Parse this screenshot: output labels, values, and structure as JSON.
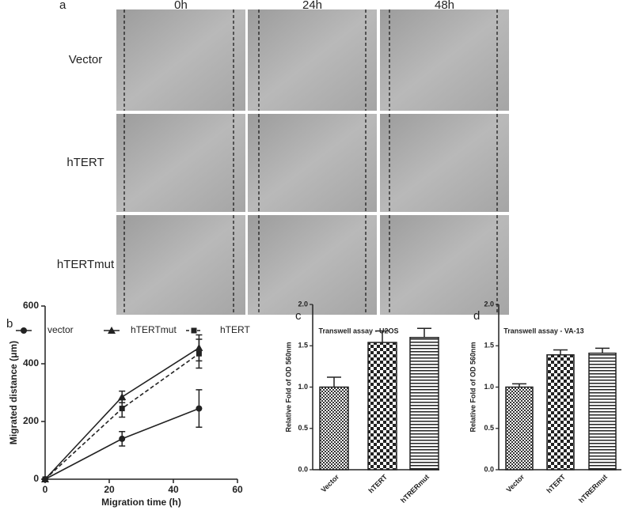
{
  "panel_a": {
    "label": "a",
    "columns": [
      "0h",
      "24h",
      "48h"
    ],
    "rows": [
      "Vector",
      "hTERT",
      "hTERTmut"
    ]
  },
  "chart_data": [
    {
      "type": "line",
      "panel_label": "b",
      "x": [
        0,
        24,
        48
      ],
      "series": [
        {
          "name": "vector",
          "color": "#222222",
          "marker": "circle",
          "dashed": false,
          "values": [
            0,
            140,
            245
          ],
          "errors": [
            0,
            25,
            65
          ]
        },
        {
          "name": "hTERTmut",
          "color": "#222222",
          "marker": "triangle",
          "dashed": false,
          "values": [
            0,
            285,
            455
          ],
          "errors": [
            0,
            20,
            45
          ]
        },
        {
          "name": "hTERT",
          "color": "#222222",
          "marker": "square",
          "dashed": true,
          "values": [
            0,
            245,
            435
          ],
          "errors": [
            0,
            30,
            50
          ]
        }
      ],
      "xlim": [
        0,
        60
      ],
      "xticks": [
        0,
        20,
        40,
        60
      ],
      "ylim": [
        0,
        600
      ],
      "yticks": [
        0,
        200,
        400,
        600
      ],
      "xlabel": "Migration time (h)",
      "ylabel": "Migrated distance (μm)",
      "legend": "top"
    },
    {
      "type": "bar",
      "panel_label": "c",
      "title": "Transwell assay - U2OS",
      "categories": [
        "Vector",
        "hTERT",
        "hTRERmut"
      ],
      "values": [
        1.0,
        1.54,
        1.6
      ],
      "errors": [
        0.12,
        0.14,
        0.11
      ],
      "patterns": [
        "fine-checker",
        "checker",
        "hlines"
      ],
      "ylim": [
        0,
        2.0
      ],
      "yticks": [
        {
          "value": 0,
          "label": "0.0"
        },
        0.5,
        {
          "value": 1,
          "label": "1.0"
        },
        1.5,
        {
          "value": 2,
          "label": "2.0"
        }
      ],
      "ylabel": "Relative Fold of OD 560nm"
    },
    {
      "type": "bar",
      "panel_label": "d",
      "title": "Transwell assay - VA-13",
      "categories": [
        "Vector",
        "hTERT",
        "hTRERmut"
      ],
      "values": [
        1.0,
        1.39,
        1.41
      ],
      "errors": [
        0.04,
        0.06,
        0.06
      ],
      "patterns": [
        "fine-checker",
        "checker",
        "hlines"
      ],
      "ylim": [
        0,
        2.0
      ],
      "yticks": [
        {
          "value": 0,
          "label": "0.0"
        },
        0.5,
        {
          "value": 1,
          "label": "1.0"
        },
        1.5,
        {
          "value": 2,
          "label": "2.0"
        }
      ],
      "ylabel": "Relative Fold of OD 560nm"
    }
  ]
}
